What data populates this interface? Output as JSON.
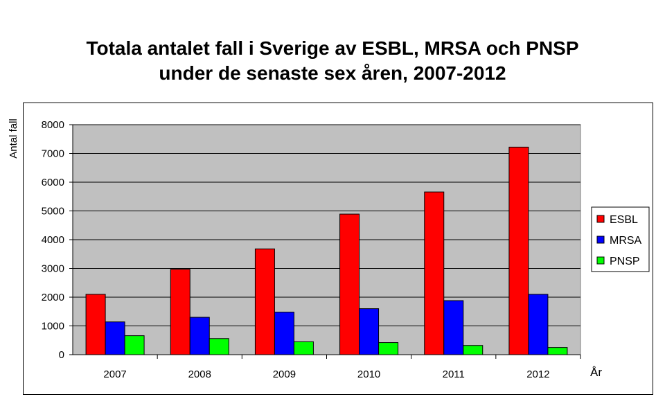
{
  "chart_data": {
    "type": "bar",
    "title_lines": [
      "Totala antalet fall i Sverige av ESBL, MRSA och PNSP",
      "under de senaste sex åren, 2007-2012"
    ],
    "xlabel": "År",
    "ylabel": "Antal fall",
    "categories": [
      "2007",
      "2008",
      "2009",
      "2010",
      "2011",
      "2012"
    ],
    "ylim": [
      0,
      8000
    ],
    "yticks": [
      0,
      1000,
      2000,
      3000,
      4000,
      5000,
      6000,
      7000,
      8000
    ],
    "grid": true,
    "legend_position": "right",
    "series": [
      {
        "name": "ESBL",
        "color": "#ff0000",
        "values": [
          2100,
          2970,
          3680,
          4890,
          5660,
          7220
        ]
      },
      {
        "name": "MRSA",
        "color": "#0000ff",
        "values": [
          1140,
          1300,
          1480,
          1600,
          1880,
          2100
        ]
      },
      {
        "name": "PNSP",
        "color": "#00ff00",
        "values": [
          660,
          560,
          450,
          420,
          320,
          250
        ]
      }
    ]
  }
}
